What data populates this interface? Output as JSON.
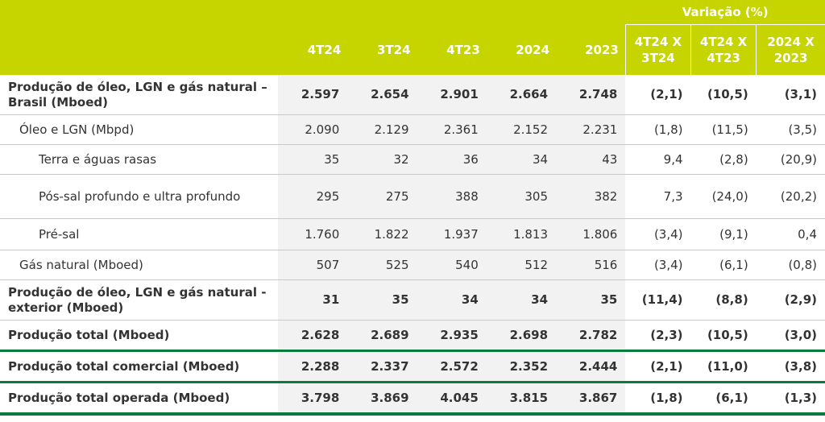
{
  "header": {
    "variation_title": "Variação (%)",
    "columns": [
      "4T24",
      "3T24",
      "4T23",
      "2024",
      "2023"
    ],
    "variation_columns": [
      {
        "line1": "4T24 X",
        "line2": "3T24"
      },
      {
        "line1": "4T24 X",
        "line2": "4T23"
      },
      {
        "line1": "2024 X",
        "line2": "2023"
      }
    ]
  },
  "rows": [
    {
      "label": "Produção de óleo, LGN e gás natural – Brasil (Mboed)",
      "values": [
        "2.597",
        "2.654",
        "2.901",
        "2.664",
        "2.748",
        "(2,1)",
        "(10,5)",
        "(3,1)"
      ]
    },
    {
      "label": "Óleo e LGN (Mbpd)",
      "values": [
        "2.090",
        "2.129",
        "2.361",
        "2.152",
        "2.231",
        "(1,8)",
        "(11,5)",
        "(3,5)"
      ]
    },
    {
      "label": "Terra e águas rasas",
      "values": [
        "35",
        "32",
        "36",
        "34",
        "43",
        "9,4",
        "(2,8)",
        "(20,9)"
      ]
    },
    {
      "label": "Pós-sal profundo e ultra profundo",
      "values": [
        "295",
        "275",
        "388",
        "305",
        "382",
        "7,3",
        "(24,0)",
        "(20,2)"
      ]
    },
    {
      "label": "Pré-sal",
      "values": [
        "1.760",
        "1.822",
        "1.937",
        "1.813",
        "1.806",
        "(3,4)",
        "(9,1)",
        "0,4"
      ]
    },
    {
      "label": "Gás natural (Mboed)",
      "values": [
        "507",
        "525",
        "540",
        "512",
        "516",
        "(3,4)",
        "(6,1)",
        "(0,8)"
      ]
    },
    {
      "label": "Produção de óleo, LGN e gás natural - exterior (Mboed)",
      "values": [
        "31",
        "35",
        "34",
        "34",
        "35",
        "(11,4)",
        "(8,8)",
        "(2,9)"
      ]
    },
    {
      "label": "Produção total (Mboed)",
      "values": [
        "2.628",
        "2.689",
        "2.935",
        "2.698",
        "2.782",
        "(2,3)",
        "(10,5)",
        "(3,0)"
      ]
    },
    {
      "label": "Produção total comercial (Mboed)",
      "values": [
        "2.288",
        "2.337",
        "2.572",
        "2.352",
        "2.444",
        "(2,1)",
        "(11,0)",
        "(3,8)"
      ]
    },
    {
      "label": "Produção total operada (Mboed)",
      "values": [
        "3.798",
        "3.869",
        "4.045",
        "3.815",
        "3.867",
        "(1,8)",
        "(6,1)",
        "(1,3)"
      ]
    }
  ]
}
